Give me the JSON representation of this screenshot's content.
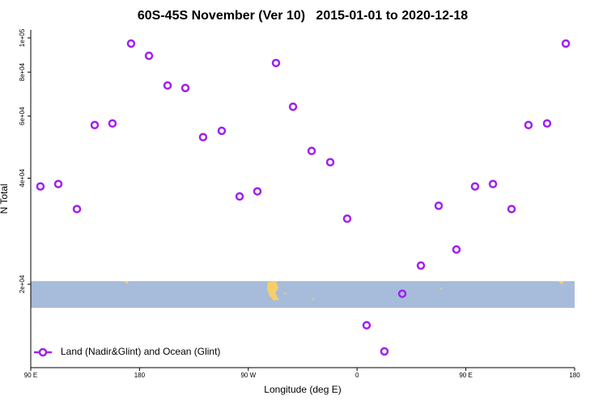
{
  "chart_data": {
    "type": "scatter",
    "title": "60S-45S November (Ver 10)   2015-01-01 to 2020-12-18",
    "x_label": "Longitude (deg E)",
    "y_label": "N Total",
    "y_scale": "log",
    "legend_position": "bottom-left",
    "xlim": [
      90,
      540
    ],
    "ylim": [
      11600,
      105400
    ],
    "xticks": [
      {
        "value": 90,
        "label": "90 E"
      },
      180,
      {
        "value": 270,
        "label": "90 W"
      },
      {
        "value": 360,
        "label": "0"
      },
      {
        "value": 450,
        "label": "90 E"
      },
      {
        "value": 540,
        "label": "180"
      }
    ],
    "yticks": [
      {
        "value": 20000,
        "label": "2e+04"
      },
      {
        "value": 40000,
        "label": "4e+04"
      },
      {
        "value": 60000,
        "label": "6e+04"
      },
      {
        "value": 80000,
        "label": "8e+04"
      },
      {
        "value": 100000,
        "label": "1e+05"
      }
    ],
    "series": [
      {
        "name": "Land (Nadir&Glint) and Ocean (Glint)",
        "color": "#a020f0",
        "x": [
          98,
          112.8,
          128.2,
          142.9,
          157.6,
          173,
          187.8,
          203.2,
          217.9,
          232.6,
          248,
          262.8,
          277.5,
          292.9,
          307,
          322.4,
          337.8,
          351.8,
          367.9,
          382.6,
          397.4,
          412.8,
          427.5,
          442.2,
          457.6,
          472.4,
          487.8,
          501.8,
          517.2,
          532.7
        ],
        "values": [
          37900,
          38500,
          32700,
          56600,
          57200,
          96400,
          89000,
          73300,
          72100,
          52300,
          54500,
          35500,
          36700,
          84900,
          63800,
          47800,
          44400,
          30700,
          15300,
          12900,
          18800,
          22600,
          33400,
          25100,
          37900,
          38500,
          32700,
          56600,
          57200,
          96400
        ]
      }
    ]
  }
}
